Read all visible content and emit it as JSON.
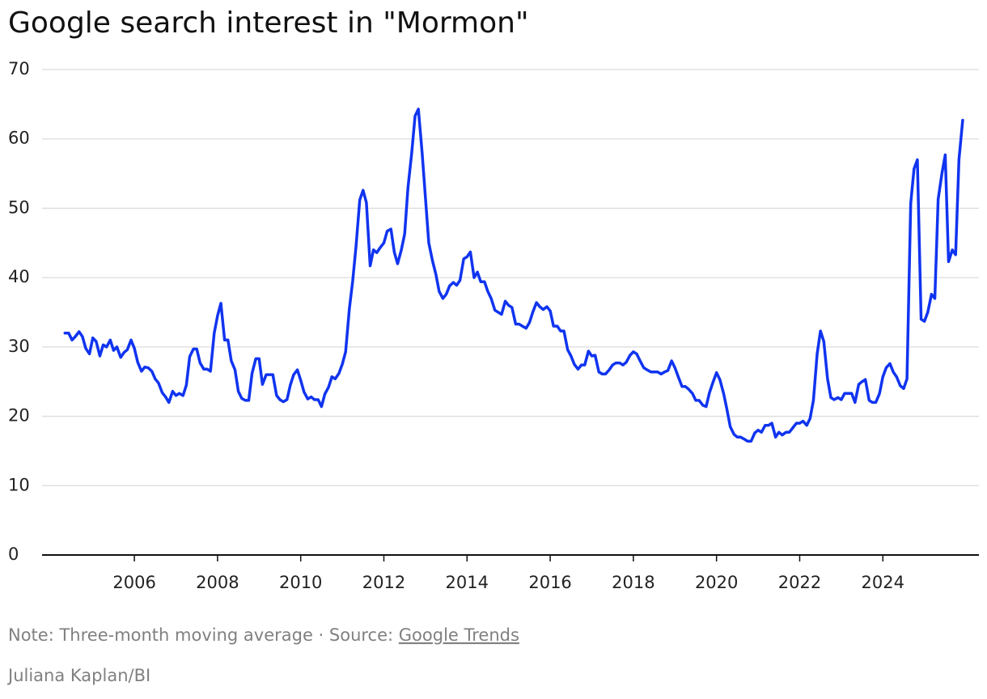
{
  "chart_data": {
    "type": "line",
    "title": "Google search interest in \"Mormon\"",
    "note": "Note: Three-month moving average · Source: ",
    "source": "Google Trends",
    "credit": "Juliana Kaplan/BI",
    "xlim": [
      2003.78,
      2026.31
    ],
    "xticks": [
      2006,
      2008,
      2010,
      2012,
      2014,
      2016,
      2018,
      2020,
      2022,
      2024
    ],
    "ylim": [
      0,
      70
    ],
    "yticks": [
      0,
      10,
      20,
      30,
      40,
      50,
      60,
      70
    ],
    "grid": true,
    "series": [
      {
        "color": "#1034f0",
        "x": [
          2004.33,
          2004.42,
          2004.5,
          2004.58,
          2004.67,
          2004.75,
          2004.83,
          2004.92,
          2005,
          2005.08,
          2005.17,
          2005.25,
          2005.33,
          2005.42,
          2005.5,
          2005.58,
          2005.67,
          2005.75,
          2005.83,
          2005.92,
          2006,
          2006.08,
          2006.17,
          2006.25,
          2006.33,
          2006.42,
          2006.5,
          2006.58,
          2006.67,
          2006.75,
          2006.83,
          2006.92,
          2007,
          2007.08,
          2007.17,
          2007.25,
          2007.33,
          2007.42,
          2007.5,
          2007.58,
          2007.67,
          2007.75,
          2007.83,
          2007.92,
          2008,
          2008.08,
          2008.17,
          2008.25,
          2008.33,
          2008.42,
          2008.5,
          2008.58,
          2008.67,
          2008.75,
          2008.83,
          2008.92,
          2009,
          2009.08,
          2009.17,
          2009.25,
          2009.33,
          2009.42,
          2009.5,
          2009.58,
          2009.67,
          2009.75,
          2009.83,
          2009.92,
          2010,
          2010.08,
          2010.17,
          2010.25,
          2010.33,
          2010.42,
          2010.5,
          2010.58,
          2010.67,
          2010.75,
          2010.83,
          2010.92,
          2011,
          2011.08,
          2011.17,
          2011.25,
          2011.33,
          2011.42,
          2011.5,
          2011.58,
          2011.67,
          2011.75,
          2011.83,
          2011.92,
          2012,
          2012.08,
          2012.17,
          2012.25,
          2012.33,
          2012.42,
          2012.5,
          2012.58,
          2012.67,
          2012.75,
          2012.83,
          2012.92,
          2013,
          2013.08,
          2013.17,
          2013.25,
          2013.33,
          2013.42,
          2013.5,
          2013.58,
          2013.67,
          2013.75,
          2013.83,
          2013.92,
          2014,
          2014.08,
          2014.17,
          2014.25,
          2014.33,
          2014.42,
          2014.5,
          2014.58,
          2014.67,
          2014.75,
          2014.83,
          2014.92,
          2015,
          2015.08,
          2015.17,
          2015.25,
          2015.33,
          2015.42,
          2015.5,
          2015.58,
          2015.67,
          2015.75,
          2015.83,
          2015.92,
          2016,
          2016.08,
          2016.17,
          2016.25,
          2016.33,
          2016.42,
          2016.5,
          2016.58,
          2016.67,
          2016.75,
          2016.83,
          2016.92,
          2017,
          2017.08,
          2017.17,
          2017.25,
          2017.33,
          2017.42,
          2017.5,
          2017.58,
          2017.67,
          2017.75,
          2017.83,
          2017.92,
          2018,
          2018.08,
          2018.17,
          2018.25,
          2018.33,
          2018.42,
          2018.5,
          2018.58,
          2018.67,
          2018.75,
          2018.83,
          2018.92,
          2019,
          2019.08,
          2019.17,
          2019.25,
          2019.33,
          2019.42,
          2019.5,
          2019.58,
          2019.67,
          2019.75,
          2019.83,
          2019.92,
          2020,
          2020.08,
          2020.17,
          2020.25,
          2020.33,
          2020.42,
          2020.5,
          2020.58,
          2020.67,
          2020.75,
          2020.83,
          2020.92,
          2021,
          2021.08,
          2021.17,
          2021.25,
          2021.33,
          2021.42,
          2021.5,
          2021.58,
          2021.67,
          2021.75,
          2021.83,
          2021.92,
          2022,
          2022.08,
          2022.17,
          2022.25,
          2022.33,
          2022.42,
          2022.5,
          2022.58,
          2022.67,
          2022.75,
          2022.83,
          2022.92,
          2023,
          2023.08,
          2023.17,
          2023.25,
          2023.33,
          2023.42,
          2023.5,
          2023.58,
          2023.67,
          2023.75,
          2023.83,
          2023.92,
          2024,
          2024.08,
          2024.17,
          2024.25,
          2024.33,
          2024.42,
          2024.5,
          2024.58,
          2024.67,
          2024.75,
          2024.83,
          2024.92,
          2025,
          2025.08,
          2025.17,
          2025.25,
          2025.33,
          2025.42,
          2025.5,
          2025.58,
          2025.67,
          2025.75,
          2025.83,
          2025.92
        ],
        "values": [
          32,
          32,
          31,
          31.5,
          32.2,
          31.5,
          29.8,
          29,
          31.3,
          30.8,
          28.7,
          30.3,
          30,
          31,
          29.5,
          30,
          28.5,
          29.2,
          29.6,
          31,
          29.8,
          27.8,
          26.5,
          27.1,
          27,
          26.5,
          25.4,
          24.8,
          23.4,
          22.8,
          22,
          23.6,
          23,
          23.3,
          23,
          24.5,
          28.6,
          29.7,
          29.7,
          27.7,
          26.8,
          26.8,
          26.5,
          32,
          34.5,
          36.3,
          31,
          31,
          28,
          26.7,
          23.6,
          22.6,
          22.3,
          22.3,
          26.2,
          28.3,
          28.3,
          24.6,
          26,
          26,
          26,
          23,
          22.4,
          22.1,
          22.4,
          24.5,
          26,
          26.7,
          25.2,
          23.5,
          22.5,
          22.8,
          22.4,
          22.4,
          21.4,
          23.2,
          24.2,
          25.7,
          25.4,
          26.2,
          27.5,
          29.3,
          35.5,
          39.5,
          44.5,
          51.2,
          52.6,
          50.8,
          41.7,
          44,
          43.6,
          44.4,
          45,
          46.7,
          47,
          43.7,
          42,
          44,
          46.3,
          53,
          58,
          63.3,
          64.3,
          58,
          51.5,
          45,
          42.4,
          40.5,
          38,
          37,
          37.6,
          38.8,
          39.3,
          38.9,
          39.6,
          42.7,
          43,
          43.7,
          40,
          40.8,
          39.4,
          39.4,
          38,
          37,
          35.3,
          35,
          34.7,
          36.6,
          36,
          35.7,
          33.3,
          33.3,
          33,
          32.7,
          33.5,
          35,
          36.4,
          35.8,
          35.4,
          35.8,
          35.2,
          33,
          33,
          32.3,
          32.3,
          29.6,
          28.7,
          27.5,
          26.8,
          27.4,
          27.4,
          29.4,
          28.7,
          28.8,
          26.4,
          26.1,
          26.1,
          26.7,
          27.4,
          27.7,
          27.7,
          27.4,
          27.8,
          28.8,
          29.3,
          29,
          27.9,
          27,
          26.7,
          26.4,
          26.4,
          26.4,
          26.1,
          26.4,
          26.6,
          28,
          27,
          25.7,
          24.3,
          24.3,
          23.9,
          23.3,
          22.3,
          22.3,
          21.6,
          21.4,
          23.4,
          25,
          26.3,
          25.3,
          23.3,
          21,
          18.5,
          17.4,
          17,
          17,
          16.7,
          16.4,
          16.4,
          17.6,
          18,
          17.7,
          18.7,
          18.7,
          19,
          17,
          17.7,
          17.3,
          17.7,
          17.7,
          18.3,
          19,
          19,
          19.3,
          18.7,
          19.7,
          22.3,
          29,
          32.3,
          30.8,
          25.4,
          22.7,
          22.4,
          22.7,
          22.4,
          23.3,
          23.3,
          23.3,
          22,
          24.6,
          25,
          25.3,
          22.3,
          22,
          22,
          23.3,
          25.7,
          27,
          27.6,
          26.4,
          25.7,
          24.4,
          24,
          25.4,
          50.7,
          55.7,
          57,
          34,
          33.7,
          35,
          37.6,
          37,
          51.3,
          55,
          57.7,
          42.3,
          44,
          43.3,
          57,
          62.7
        ]
      }
    ]
  }
}
